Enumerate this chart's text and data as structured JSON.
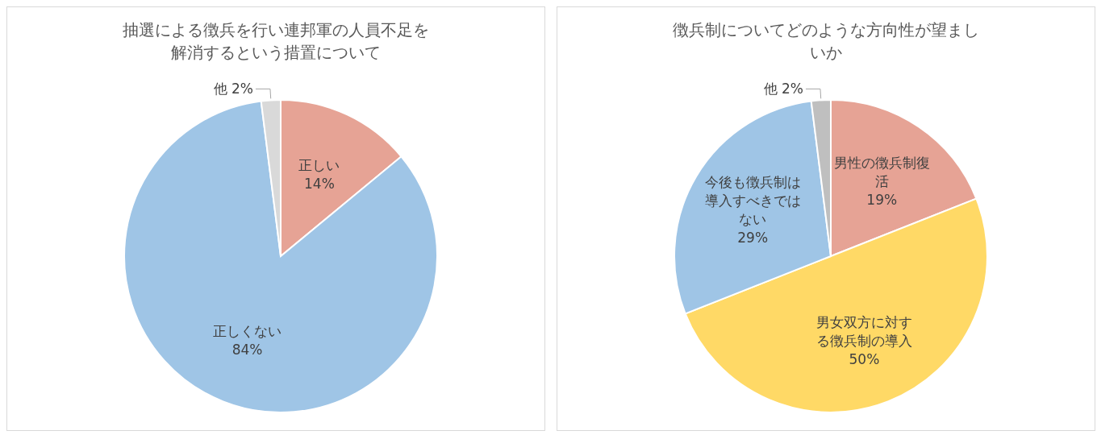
{
  "chart_data": [
    {
      "type": "pie",
      "title": "抽選による徴兵を行い連邦軍の人員不足を解消するという措置について",
      "categories": [
        "正しい",
        "正しくない",
        "他"
      ],
      "values": [
        14,
        84,
        2
      ],
      "colors": [
        "#e6a395",
        "#9fc5e6",
        "#d9d9d9"
      ],
      "value_labels": [
        "14%",
        "84%",
        "2%"
      ]
    },
    {
      "type": "pie",
      "title": "徴兵制についてどのような方向性が望ましいか",
      "categories": [
        "男性の徴兵制復活",
        "男女双方に対する徴兵制の導入",
        "今後も徴兵制は導入すべきではない",
        "他"
      ],
      "values": [
        19,
        50,
        29,
        2
      ],
      "colors": [
        "#e6a395",
        "#ffd966",
        "#9fc5e6",
        "#bfbfbf"
      ],
      "value_labels": [
        "19%",
        "50%",
        "29%",
        "2%"
      ]
    }
  ]
}
